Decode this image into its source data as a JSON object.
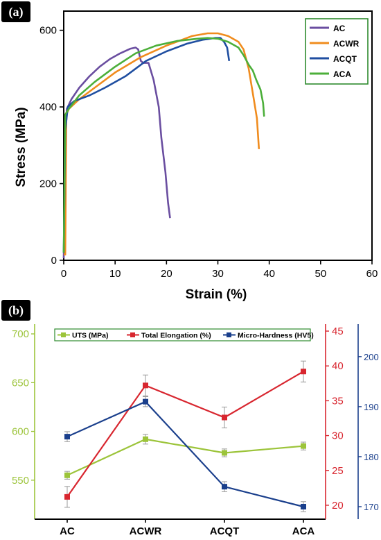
{
  "chart_data": [
    {
      "type": "line",
      "panel_label": "(a)",
      "xlabel": "Strain (%)",
      "ylabel": "Stress (MPa)",
      "xlim": [
        0,
        60
      ],
      "ylim": [
        0,
        650
      ],
      "x_ticks": [
        "0",
        "10",
        "20",
        "30",
        "40",
        "50",
        "60"
      ],
      "y_ticks": [
        "0",
        "200",
        "400",
        "600"
      ],
      "legend_position": "top-right",
      "series": [
        {
          "name": "AC",
          "color": "#6a4ea0",
          "points": [
            [
              0,
              5
            ],
            [
              0.3,
              300
            ],
            [
              0.6,
              395
            ],
            [
              1.5,
              420
            ],
            [
              3,
              450
            ],
            [
              5,
              480
            ],
            [
              7,
              505
            ],
            [
              9,
              525
            ],
            [
              11,
              540
            ],
            [
              13,
              552
            ],
            [
              14,
              555
            ],
            [
              14.5,
              550
            ],
            [
              15,
              520
            ],
            [
              15.5,
              515
            ],
            [
              16.5,
              515
            ],
            [
              17.5,
              470
            ],
            [
              18.5,
              400
            ],
            [
              19,
              320
            ],
            [
              19.8,
              230
            ],
            [
              20.3,
              150
            ],
            [
              20.7,
              110
            ]
          ]
        },
        {
          "name": "ACWR",
          "color": "#f08c1e",
          "points": [
            [
              0,
              15
            ],
            [
              0.3,
              15
            ],
            [
              0.5,
              380
            ],
            [
              1,
              395
            ],
            [
              3,
              420
            ],
            [
              6,
              450
            ],
            [
              10,
              490
            ],
            [
              15,
              530
            ],
            [
              20,
              560
            ],
            [
              25,
              585
            ],
            [
              28,
              592
            ],
            [
              30,
              592
            ],
            [
              32,
              585
            ],
            [
              34,
              570
            ],
            [
              35,
              550
            ],
            [
              36,
              500
            ],
            [
              37,
              420
            ],
            [
              37.6,
              370
            ],
            [
              38,
              290
            ]
          ]
        },
        {
          "name": "ACQT",
          "color": "#1f4ea0",
          "points": [
            [
              0,
              20
            ],
            [
              0.3,
              340
            ],
            [
              0.8,
              400
            ],
            [
              2,
              415
            ],
            [
              5,
              430
            ],
            [
              8,
              450
            ],
            [
              12,
              480
            ],
            [
              16,
              520
            ],
            [
              20,
              545
            ],
            [
              24,
              565
            ],
            [
              27,
              575
            ],
            [
              29.5,
              580
            ],
            [
              30.5,
              580
            ],
            [
              31.2,
              570
            ],
            [
              31.8,
              555
            ],
            [
              32.2,
              520
            ]
          ]
        },
        {
          "name": "ACA",
          "color": "#4caf3a",
          "points": [
            [
              0,
              20
            ],
            [
              0.3,
              380
            ],
            [
              1,
              395
            ],
            [
              3,
              430
            ],
            [
              6,
              465
            ],
            [
              10,
              505
            ],
            [
              14,
              540
            ],
            [
              18,
              560
            ],
            [
              22,
              572
            ],
            [
              26,
              578
            ],
            [
              28,
              580
            ],
            [
              30,
              578
            ],
            [
              32,
              570
            ],
            [
              34,
              555
            ],
            [
              35,
              535
            ],
            [
              36,
              510
            ],
            [
              36.8,
              495
            ],
            [
              37.5,
              470
            ],
            [
              38.3,
              445
            ],
            [
              38.8,
              410
            ],
            [
              39,
              375
            ]
          ]
        }
      ]
    },
    {
      "type": "line",
      "panel_label": "(b)",
      "categories": [
        "AC",
        "ACWR",
        "ACQT",
        "ACA"
      ],
      "legend_position": "top",
      "series": [
        {
          "name": "UTS (MPa)",
          "axis": "left",
          "color": "#9cc43a",
          "values": [
            555,
            592,
            578,
            585
          ],
          "errors": [
            4,
            5,
            4,
            4
          ]
        },
        {
          "name": "Total Elongation (%)",
          "axis": "right",
          "color": "#d8262f",
          "values": [
            21.2,
            37.2,
            32.6,
            39.2
          ],
          "errors": [
            1.5,
            1.5,
            1.5,
            1.5
          ]
        },
        {
          "name": "Micro-Hardness (HV5)",
          "axis": "far-right",
          "color": "#1a3f8c",
          "values": [
            184,
            191,
            174,
            170
          ],
          "errors": [
            1,
            1,
            1,
            1
          ]
        }
      ],
      "left_axis": {
        "color": "#9cc43a",
        "range": [
          510,
          710
        ],
        "ticks": [
          "550",
          "600",
          "650",
          "700"
        ]
      },
      "right_axis": {
        "color": "#d8262f",
        "range": [
          18,
          46
        ],
        "ticks": [
          "20",
          "25",
          "30",
          "35",
          "40",
          "45"
        ]
      },
      "far_right_axis": {
        "color": "#1a3f8c",
        "range": [
          167.5,
          206.5
        ],
        "ticks": [
          "170",
          "180",
          "190",
          "200"
        ]
      }
    }
  ]
}
